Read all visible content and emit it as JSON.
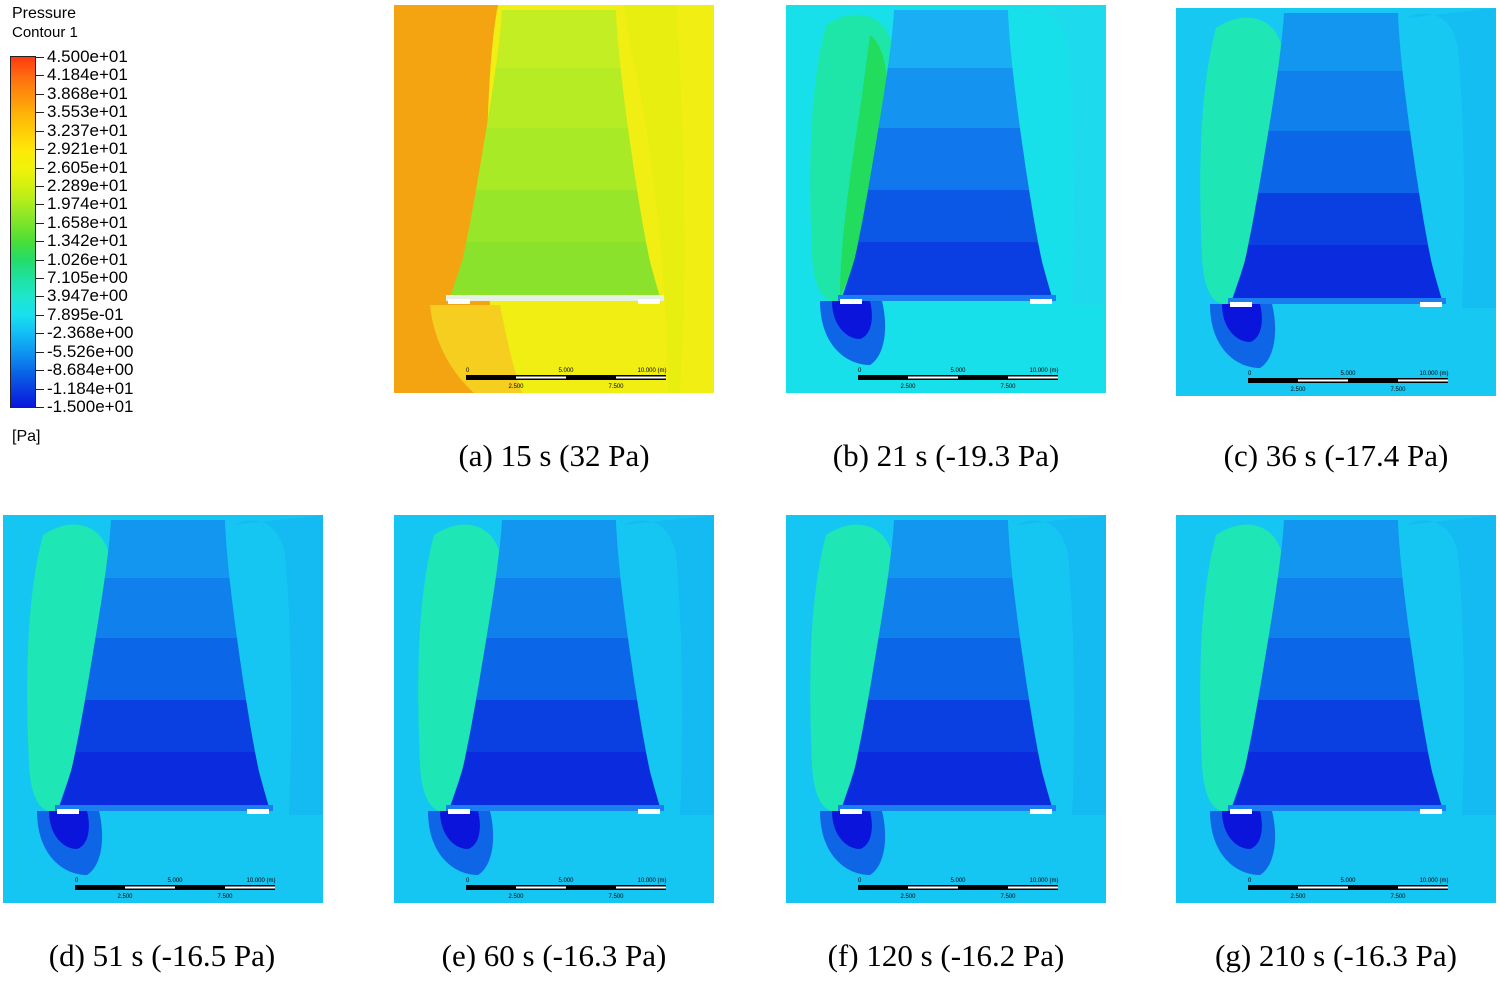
{
  "legend": {
    "title_line1": "Pressure",
    "title_line2": "Contour 1",
    "unit": "[Pa]",
    "levels": [
      "4.500e+01",
      "4.184e+01",
      "3.868e+01",
      "3.553e+01",
      "3.237e+01",
      "2.921e+01",
      "2.605e+01",
      "2.289e+01",
      "1.974e+01",
      "1.658e+01",
      "1.342e+01",
      "1.026e+01",
      "7.105e+00",
      "3.947e+00",
      "7.895e-01",
      "-2.368e+00",
      "-5.526e+00",
      "-8.684e+00",
      "-1.184e+01",
      "-1.500e+01"
    ],
    "colors": [
      "#ff3a10",
      "#ff6a10",
      "#ff8e0c",
      "#ffb008",
      "#ffcc06",
      "#ffe808",
      "#f2f20a",
      "#d2f010",
      "#aaec1e",
      "#7ce42a",
      "#4ade36",
      "#24dc6a",
      "#1ee2a0",
      "#1ee6cc",
      "#18e0ee",
      "#12bef6",
      "#0e96f0",
      "#0a6ae8",
      "#0a3ee2",
      "#0a14da"
    ]
  },
  "scale_bar": {
    "top": [
      "0",
      "5.000",
      "10.000 (m)"
    ],
    "bottom": [
      "2.500",
      "7.500"
    ]
  },
  "panels": [
    {
      "id": "a",
      "caption": "(a) 15 s (32 Pa)",
      "palette": {
        "bg": "#f0ee12",
        "left": "#f5a411",
        "wake": "#f6ce20",
        "tower": [
          "#c4ee24",
          "#b6ec24",
          "#a8ea26",
          "#98e62a",
          "#8ae22c"
        ],
        "strip": "#e6f0e4",
        "lowcore": "#f6ce20",
        "lowring": "#f8da3a"
      }
    },
    {
      "id": "b",
      "caption": "(b) 21 s (-19.3 Pa)",
      "palette": {
        "bg": "#18e0ea",
        "left": "#1ee6a8",
        "core": "#22dc5e",
        "wake": "#22d6ee",
        "tower": [
          "#1aaef4",
          "#1494f0",
          "#1078ec",
          "#0c58e6",
          "#0a3ee2"
        ],
        "strip": "#1a7ef0",
        "lowcore": "#0a14da",
        "lowring": "#0e66e6"
      }
    },
    {
      "id": "c",
      "caption": "(c) 36 s (-17.4 Pa)",
      "palette": {
        "bg": "#16c8f2",
        "left": "#1ee6b4",
        "core": "#1ee6b4",
        "wake": "#14b8f2",
        "tower": [
          "#1296f0",
          "#1080ec",
          "#0c66e8",
          "#0a40e2",
          "#0a2cde"
        ],
        "strip": "#1a7ef0",
        "lowcore": "#0a14da",
        "lowring": "#0e66e6"
      }
    },
    {
      "id": "d",
      "caption": "(d) 51 s (-16.5 Pa)",
      "palette": {
        "bg": "#16c6f2",
        "left": "#1ee6b4",
        "core": "#1ee6b4",
        "wake": "#14b4f2",
        "tower": [
          "#1296f0",
          "#1080ec",
          "#0c66e8",
          "#0a40e2",
          "#0a2cde"
        ],
        "strip": "#1a7ef0",
        "lowcore": "#0a14da",
        "lowring": "#0e66e6"
      }
    },
    {
      "id": "e",
      "caption": "(e) 60 s (-16.3 Pa)",
      "palette": {
        "bg": "#16c6f2",
        "left": "#1ee6b4",
        "core": "#1ee6b4",
        "wake": "#14b4f2",
        "tower": [
          "#1296f0",
          "#1080ec",
          "#0c66e8",
          "#0a40e2",
          "#0a2cde"
        ],
        "strip": "#1a7ef0",
        "lowcore": "#0a14da",
        "lowring": "#0e66e6"
      }
    },
    {
      "id": "f",
      "caption": "(f) 120 s (-16.2 Pa)",
      "palette": {
        "bg": "#16c6f2",
        "left": "#1ee6b4",
        "core": "#1ee6b4",
        "wake": "#14b4f2",
        "tower": [
          "#1296f0",
          "#1080ec",
          "#0c66e8",
          "#0a40e2",
          "#0a2cde"
        ],
        "strip": "#1a7ef0",
        "lowcore": "#0a14da",
        "lowring": "#0e66e6"
      }
    },
    {
      "id": "g",
      "caption": "(g) 210 s (-16.3 Pa)",
      "palette": {
        "bg": "#16c6f2",
        "left": "#1ee6b4",
        "core": "#1ee6b4",
        "wake": "#14b4f2",
        "tower": [
          "#1296f0",
          "#1080ec",
          "#0c66e8",
          "#0a40e2",
          "#0a2cde"
        ],
        "strip": "#1a7ef0",
        "lowcore": "#0a14da",
        "lowring": "#0e66e6"
      }
    }
  ]
}
